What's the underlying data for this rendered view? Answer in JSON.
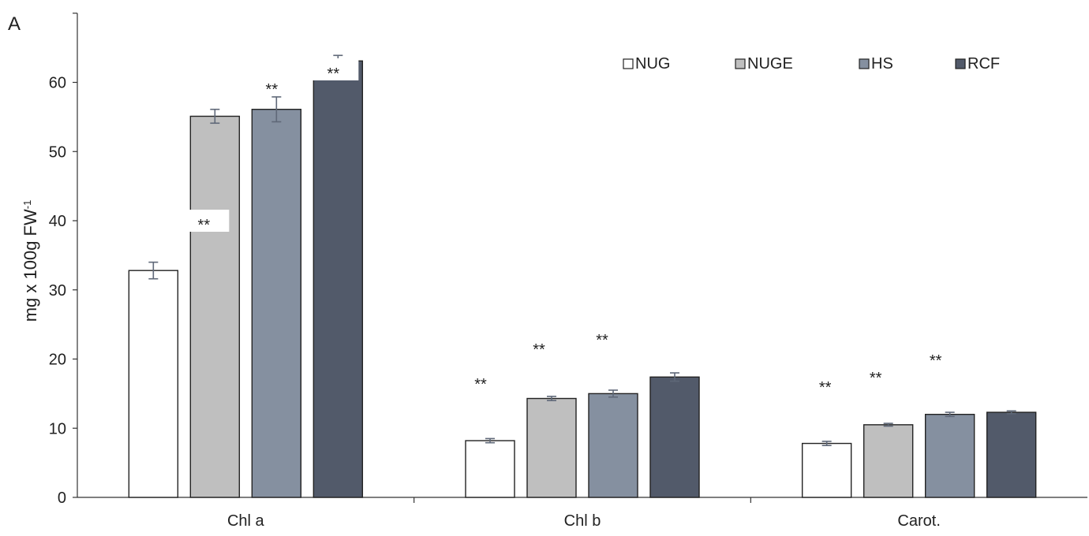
{
  "chart_data": {
    "type": "bar",
    "panel_label": "A",
    "ylabel": "mg x 100g FW",
    "ylabel_superscript": "-1",
    "ylim": [
      0,
      70
    ],
    "yticks": [
      0,
      10,
      20,
      30,
      40,
      50,
      60
    ],
    "categories": [
      "Chl a",
      "Chl b",
      "Carot."
    ],
    "legend_position": "top-right",
    "significance_marker": "**",
    "series": [
      {
        "name": "NUG",
        "color": "#ffffff",
        "values": [
          32.8,
          8.2,
          7.8
        ],
        "errors": [
          1.2,
          0.3,
          0.3
        ]
      },
      {
        "name": "NUGE",
        "color": "#bfbfbf",
        "values": [
          55.1,
          14.3,
          10.5
        ],
        "errors": [
          1.0,
          0.3,
          0.2
        ]
      },
      {
        "name": "HS",
        "color": "#8590a0",
        "values": [
          56.1,
          15.0,
          12.0
        ],
        "errors": [
          1.8,
          0.5,
          0.3
        ]
      },
      {
        "name": "RCF",
        "color": "#525a6a",
        "values": [
          63.1,
          17.4,
          12.3
        ],
        "errors": [
          0.8,
          0.6,
          0.2
        ]
      }
    ],
    "significance": [
      {
        "category": 0,
        "series": 1
      },
      {
        "category": 0,
        "series": 2
      },
      {
        "category": 0,
        "series": 3
      },
      {
        "category": 1,
        "series": 0
      },
      {
        "category": 1,
        "series": 1
      },
      {
        "category": 1,
        "series": 2
      },
      {
        "category": 2,
        "series": 0
      },
      {
        "category": 2,
        "series": 1
      },
      {
        "category": 2,
        "series": 2
      }
    ]
  }
}
